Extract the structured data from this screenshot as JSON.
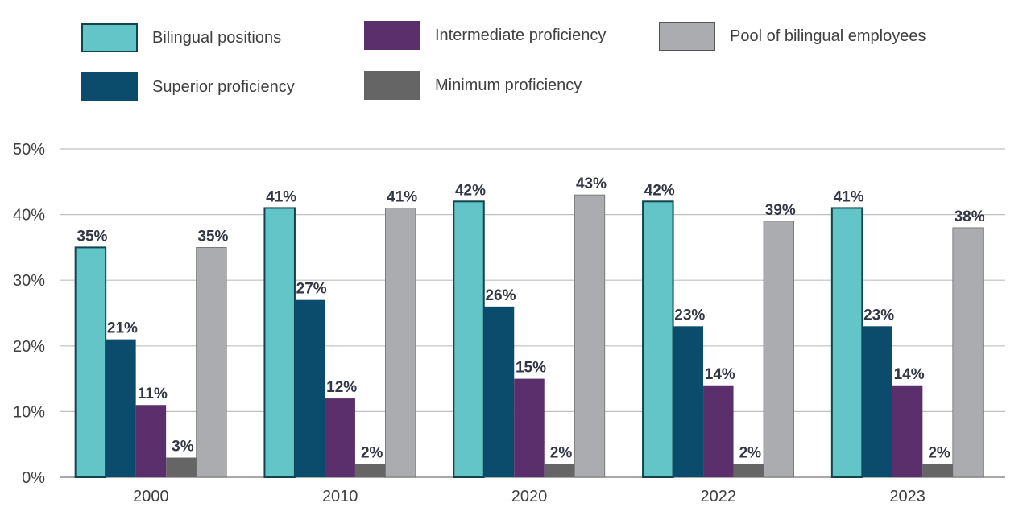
{
  "chart_data": {
    "type": "bar",
    "categories": [
      "2000",
      "2010",
      "2020",
      "2022",
      "2023"
    ],
    "series": [
      {
        "name": "Bilingual positions",
        "color": "#63c5c7",
        "values": [
          35,
          41,
          42,
          42,
          41
        ],
        "labels": [
          "35%",
          "41%",
          "42%",
          "42%",
          "41%"
        ]
      },
      {
        "name": "Superior proficiency",
        "color": "#0b4b6b",
        "values": [
          21,
          27,
          26,
          23,
          23
        ],
        "labels": [
          "21%",
          "27%",
          "26%",
          "23%",
          "23%"
        ]
      },
      {
        "name": "Intermediate proficiency",
        "color": "#5b2f6c",
        "values": [
          11,
          12,
          15,
          14,
          14
        ],
        "labels": [
          "11%",
          "12%",
          "15%",
          "14%",
          "14%"
        ]
      },
      {
        "name": "Minimum proficiency",
        "color": "#656565",
        "values": [
          3,
          2,
          2,
          2,
          2
        ],
        "labels": [
          "3%",
          "2%",
          "2%",
          "2%",
          "2%"
        ]
      },
      {
        "name": "Pool of bilingual employees",
        "color": "#abacaf",
        "values": [
          35,
          41,
          43,
          39,
          38
        ],
        "labels": [
          "35%",
          "41%",
          "43%",
          "39%",
          "38%"
        ]
      }
    ],
    "ylim": [
      0,
      50
    ],
    "yticks": [
      "0%",
      "10%",
      "20%",
      "30%",
      "40%",
      "50%"
    ],
    "grid": true,
    "legend_position": "top",
    "xlabel": "",
    "ylabel": ""
  }
}
